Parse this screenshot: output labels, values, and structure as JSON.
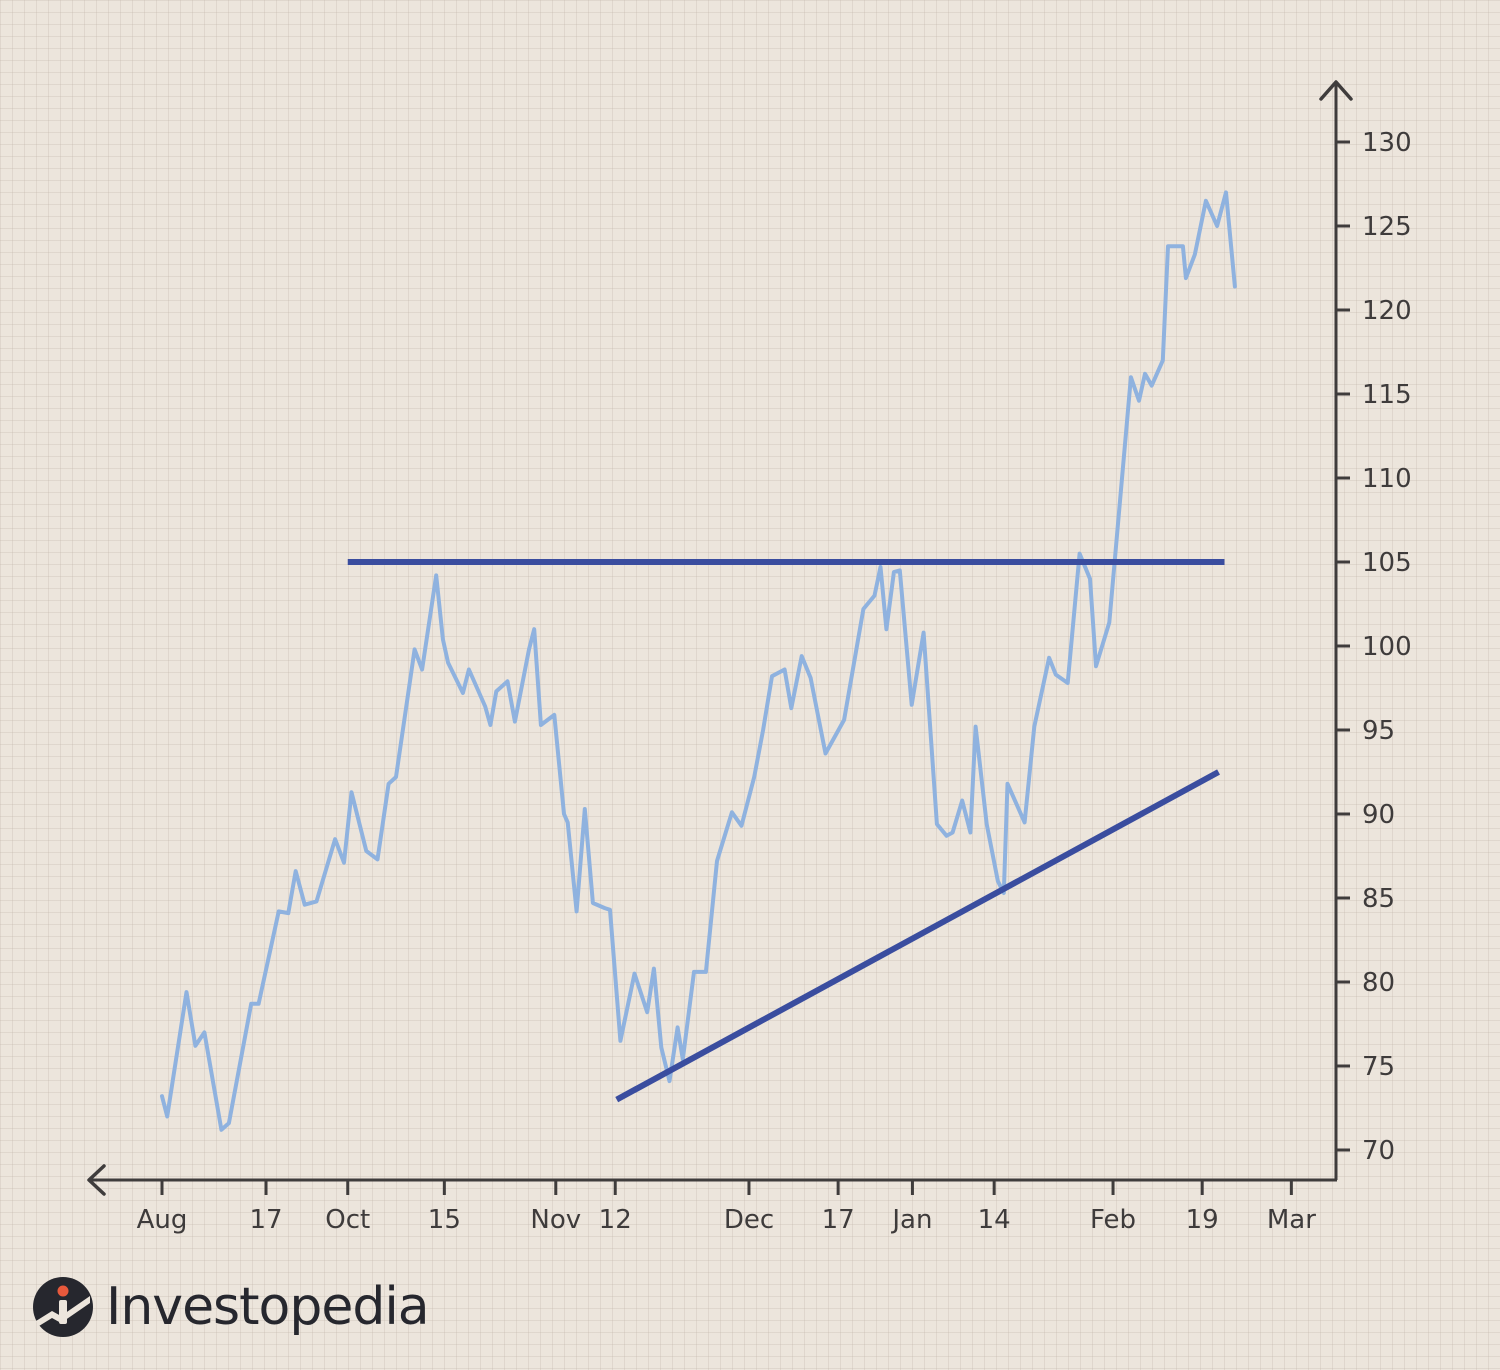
{
  "brand": {
    "name": "Investopedia",
    "icon": "investopedia-logo-icon"
  },
  "colors": {
    "price": "#8fb2df",
    "trendline": "#3a4d9f",
    "axis": "#3f3c3c",
    "background": "#ece5dc"
  },
  "chart_data": {
    "type": "line",
    "title": "",
    "xlabel": "",
    "ylabel": "",
    "ylim": [
      68,
      132
    ],
    "y_ticks": [
      70,
      75,
      80,
      85,
      90,
      95,
      100,
      105,
      110,
      115,
      120,
      125,
      130
    ],
    "y_tick_labels": [
      "70",
      "75",
      "80",
      "85",
      "90",
      "95",
      "100",
      "105",
      "110",
      "115",
      "120",
      "125",
      "130"
    ],
    "x_range": [
      0,
      151
    ],
    "x_ticks": [
      {
        "x": 0,
        "label": "Aug"
      },
      {
        "x": 14,
        "label": "17"
      },
      {
        "x": 25,
        "label": "Oct"
      },
      {
        "x": 38,
        "label": "15"
      },
      {
        "x": 53,
        "label": "Nov"
      },
      {
        "x": 61,
        "label": "12"
      },
      {
        "x": 79,
        "label": "Dec"
      },
      {
        "x": 91,
        "label": "17"
      },
      {
        "x": 101,
        "label": "Jan"
      },
      {
        "x": 112,
        "label": "14"
      },
      {
        "x": 128,
        "label": "Feb"
      },
      {
        "x": 140,
        "label": "19"
      },
      {
        "x": 152,
        "label": "Mar"
      }
    ],
    "grid": false,
    "axis_position": "right",
    "series": [
      {
        "points": [
          [
            0,
            73.2
          ],
          [
            0.7,
            72.0
          ],
          [
            3.3,
            79.4
          ],
          [
            4.5,
            76.2
          ],
          [
            5.7,
            77.0
          ],
          [
            8,
            71.2
          ],
          [
            9,
            71.6
          ],
          [
            12,
            78.7
          ],
          [
            13,
            78.7
          ],
          [
            15.7,
            84.2
          ],
          [
            17,
            84.1
          ],
          [
            18,
            86.6
          ],
          [
            19.2,
            84.6
          ],
          [
            20.8,
            84.8
          ],
          [
            23.3,
            88.5
          ],
          [
            24.5,
            87.1
          ],
          [
            25.5,
            91.3
          ],
          [
            27.5,
            87.8
          ],
          [
            29,
            87.3
          ],
          [
            30.5,
            91.8
          ],
          [
            31.5,
            92.2
          ],
          [
            34,
            99.8
          ],
          [
            35,
            98.6
          ],
          [
            36.9,
            104.2
          ],
          [
            37.8,
            100.4
          ],
          [
            38.5,
            99.0
          ],
          [
            40.5,
            97.2
          ],
          [
            41.3,
            98.6
          ],
          [
            43.5,
            96.4
          ],
          [
            44.2,
            95.3
          ],
          [
            45,
            97.3
          ],
          [
            46.5,
            97.9
          ],
          [
            47.5,
            95.5
          ],
          [
            49.4,
            99.8
          ],
          [
            50.1,
            101.0
          ],
          [
            51,
            95.3
          ],
          [
            52.8,
            95.9
          ],
          [
            54.1,
            90.0
          ],
          [
            54.6,
            89.5
          ],
          [
            55.8,
            84.2
          ],
          [
            56.9,
            90.3
          ],
          [
            58,
            84.7
          ],
          [
            59.6,
            84.4
          ],
          [
            60.3,
            84.3
          ],
          [
            61.7,
            76.5
          ],
          [
            63.6,
            80.5
          ],
          [
            65.3,
            78.2
          ],
          [
            66.2,
            80.8
          ],
          [
            67.2,
            76.1
          ],
          [
            68.3,
            74.1
          ],
          [
            69.4,
            77.3
          ],
          [
            70.1,
            75.4
          ],
          [
            71.6,
            80.6
          ],
          [
            73.2,
            80.6
          ],
          [
            74.7,
            87.2
          ],
          [
            76.7,
            90.1
          ],
          [
            78,
            89.3
          ],
          [
            79.7,
            92.2
          ],
          [
            80.9,
            95.0
          ],
          [
            82.1,
            98.2
          ],
          [
            83.8,
            98.6
          ],
          [
            84.7,
            96.3
          ],
          [
            86.1,
            99.4
          ],
          [
            87.3,
            98.1
          ],
          [
            89.3,
            93.6
          ],
          [
            91.8,
            95.6
          ],
          [
            94.4,
            102.2
          ],
          [
            95.9,
            103.0
          ],
          [
            96.7,
            104.7
          ],
          [
            97.5,
            101.0
          ],
          [
            98.5,
            104.4
          ],
          [
            99.3,
            104.5
          ],
          [
            100.9,
            96.5
          ],
          [
            102.5,
            100.8
          ],
          [
            104.3,
            89.4
          ],
          [
            105.6,
            88.7
          ],
          [
            106.4,
            88.9
          ],
          [
            107.7,
            90.8
          ],
          [
            108.8,
            88.9
          ],
          [
            109.5,
            95.2
          ],
          [
            111,
            89.4
          ],
          [
            112.5,
            86.0
          ],
          [
            113.3,
            85.3
          ],
          [
            113.8,
            91.8
          ],
          [
            116.1,
            89.5
          ],
          [
            117.4,
            95.2
          ],
          [
            119.4,
            99.3
          ],
          [
            120.3,
            98.3
          ],
          [
            121.9,
            97.8
          ],
          [
            123.5,
            105.5
          ],
          [
            124.9,
            104.0
          ],
          [
            125.7,
            98.8
          ],
          [
            127.5,
            101.4
          ],
          [
            130.4,
            116.0
          ],
          [
            131.5,
            114.6
          ],
          [
            132.3,
            116.2
          ],
          [
            133.2,
            115.5
          ],
          [
            134.7,
            117.0
          ],
          [
            135.4,
            123.8
          ],
          [
            137.4,
            123.8
          ],
          [
            137.8,
            121.9
          ],
          [
            139,
            123.3
          ],
          [
            140.5,
            126.5
          ],
          [
            142,
            125.0
          ],
          [
            143.2,
            127.0
          ],
          [
            144.4,
            121.4
          ]
        ]
      }
    ],
    "annotations": [
      {
        "type": "resistance",
        "from": [
          25,
          105
        ],
        "to": [
          143,
          105
        ]
      },
      {
        "type": "support",
        "from": [
          61.2,
          73.0
        ],
        "to": [
          142.2,
          92.5
        ]
      }
    ]
  }
}
